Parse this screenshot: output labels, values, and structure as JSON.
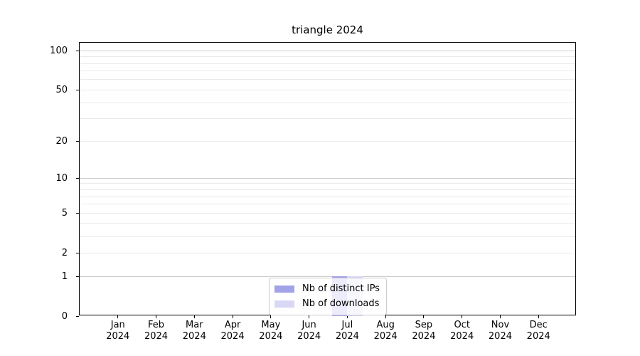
{
  "figure": {
    "title": "triangle 2024"
  },
  "legend": {
    "items": [
      {
        "label": "Nb of distinct IPs"
      },
      {
        "label": "Nb of downloads"
      }
    ]
  },
  "chart_data": {
    "type": "bar",
    "title": "triangle 2024",
    "categories": [
      "Jan 2024",
      "Feb 2024",
      "Mar 2024",
      "Apr 2024",
      "May 2024",
      "Jun 2024",
      "Jul 2024",
      "Aug 2024",
      "Sep 2024",
      "Oct 2024",
      "Nov 2024",
      "Dec 2024"
    ],
    "series": [
      {
        "name": "Nb of distinct IPs",
        "color": "#a2a2e8",
        "values": [
          0,
          0,
          0,
          0,
          0,
          0,
          1,
          0,
          0,
          0,
          0,
          0
        ]
      },
      {
        "name": "Nb of downloads",
        "color": "#d8d8f5",
        "values": [
          0,
          0,
          0,
          0,
          0,
          0,
          1,
          0,
          0,
          0,
          0,
          0
        ]
      }
    ],
    "xlabel": "",
    "ylabel": "",
    "yscale": "log1p",
    "ylim": [
      0,
      115
    ],
    "yticks": [
      0,
      1,
      2,
      5,
      10,
      20,
      50,
      100
    ],
    "yticks_major_grid": [
      1,
      10,
      100
    ],
    "yticks_minor_grid": [
      2,
      3,
      4,
      5,
      6,
      7,
      8,
      9,
      20,
      30,
      40,
      50,
      60,
      70,
      80,
      90
    ],
    "grid": true,
    "legend_position": "lower center",
    "bar_group": "side-by-side",
    "annotations": []
  },
  "colors": {
    "spine": "#000000",
    "grid_minor": "#eaeaea",
    "grid_major": "#cbcbcb",
    "background": "#ffffff",
    "text": "#000000"
  }
}
